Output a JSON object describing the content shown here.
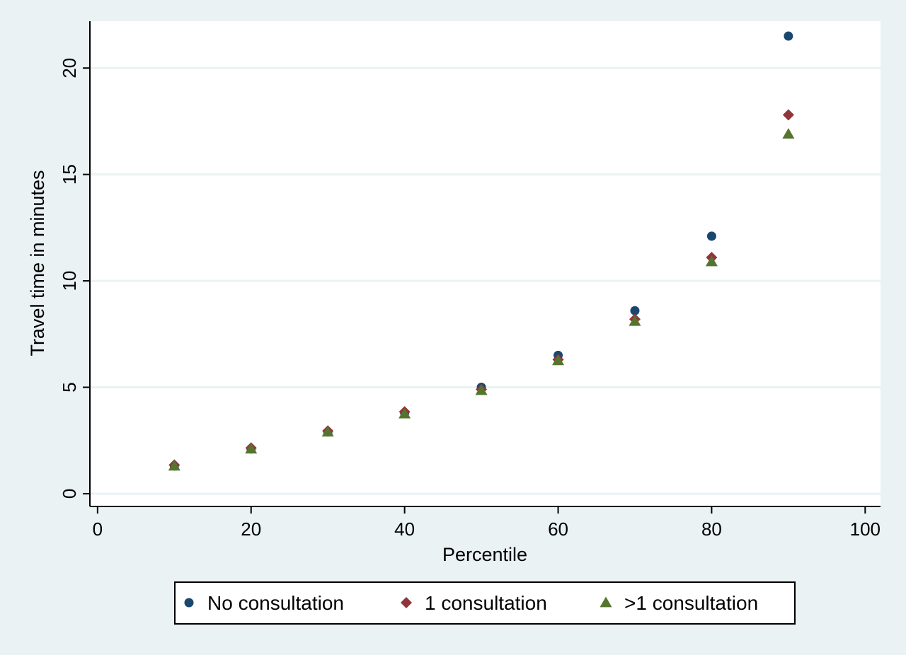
{
  "chart_data": {
    "type": "scatter",
    "xlabel": "Percentile",
    "ylabel": "Travel time in minutes",
    "xlim": [
      -1,
      102
    ],
    "ylim": [
      -0.6,
      22.2
    ],
    "x_ticks": [
      0,
      20,
      40,
      60,
      80,
      100
    ],
    "y_ticks": [
      0,
      5,
      10,
      15,
      20
    ],
    "grid": true,
    "legend_position": "bottom",
    "background_color": "#eaf2f3",
    "plot_background_color": "#ffffff",
    "series": [
      {
        "name": "No consultation",
        "marker": "circle",
        "color": "#1a476f",
        "x": [
          10,
          20,
          30,
          40,
          50,
          60,
          70,
          80,
          90
        ],
        "y": [
          1.3,
          2.1,
          2.9,
          3.8,
          5.0,
          6.5,
          8.6,
          12.1,
          21.5
        ]
      },
      {
        "name": "1 consultation",
        "marker": "diamond",
        "color": "#90353b",
        "x": [
          10,
          20,
          30,
          40,
          50,
          60,
          70,
          80,
          90
        ],
        "y": [
          1.35,
          2.15,
          2.95,
          3.85,
          4.9,
          6.3,
          8.2,
          11.1,
          17.8
        ]
      },
      {
        "name": ">1 consultation",
        "marker": "triangle",
        "color": "#55752f",
        "x": [
          10,
          20,
          30,
          40,
          50,
          60,
          70,
          80,
          90
        ],
        "y": [
          1.3,
          2.1,
          2.9,
          3.75,
          4.85,
          6.25,
          8.1,
          10.9,
          16.9
        ]
      }
    ]
  }
}
